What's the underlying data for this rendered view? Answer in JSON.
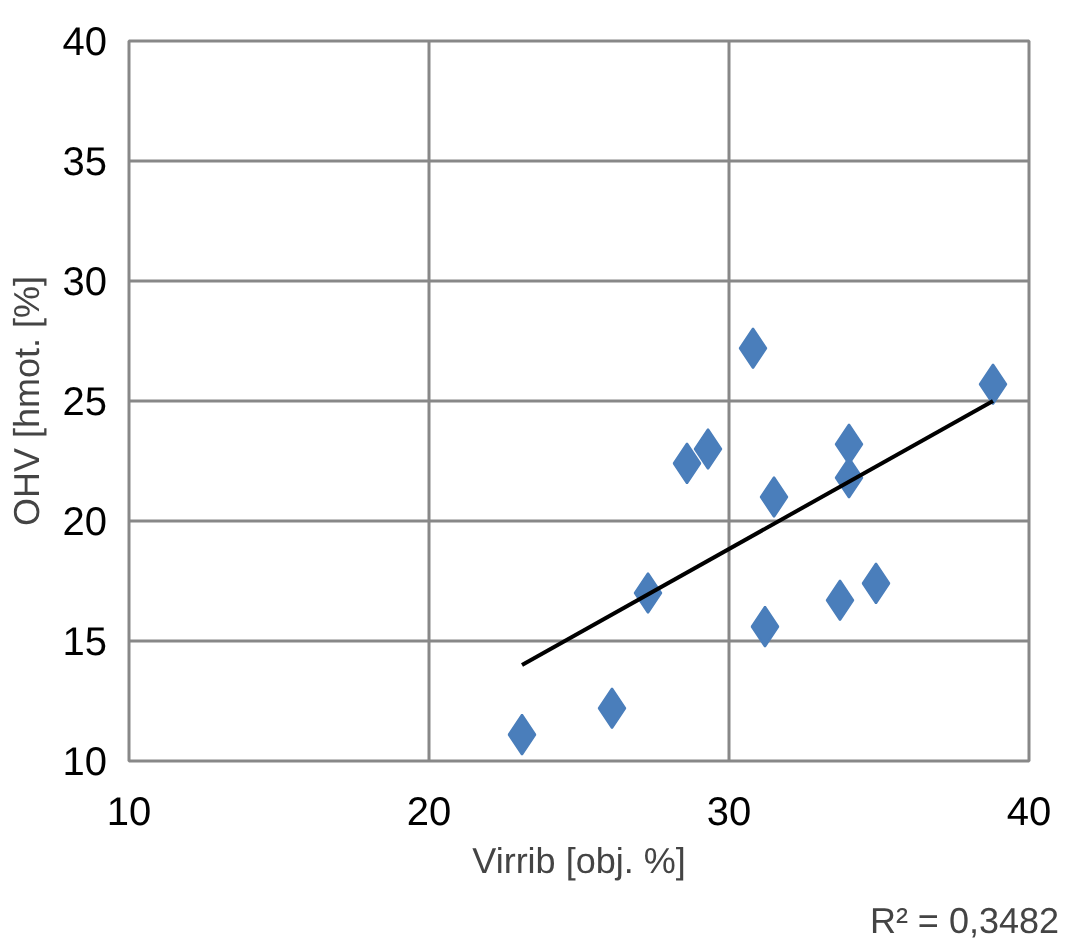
{
  "chart_data": {
    "type": "scatter",
    "xlabel": "Virrib [obj. %]",
    "ylabel": "OHV [hmot. [%]",
    "xlim": [
      10,
      40
    ],
    "xticks": [
      10,
      20,
      30,
      40
    ],
    "ylim": [
      10,
      40
    ],
    "yticks": [
      10,
      15,
      20,
      25,
      30,
      35,
      40
    ],
    "grid": true,
    "series": [
      {
        "marker": "diamond",
        "color": "#4a7ebb",
        "x": [
          23.1,
          26.1,
          27.3,
          28.6,
          29.3,
          30.8,
          31.2,
          31.5,
          33.7,
          34.0,
          34.0,
          34.9,
          38.8
        ],
        "values": [
          11.1,
          12.2,
          17.0,
          22.4,
          23.0,
          27.2,
          15.6,
          21.0,
          16.7,
          21.8,
          23.2,
          17.4,
          25.7
        ]
      },
      {
        "type": "line",
        "color": "#000000",
        "x": [
          23.1,
          38.8
        ],
        "values": [
          14.0,
          25.0
        ]
      }
    ],
    "annotations": [
      "R² = 0,3482"
    ]
  }
}
